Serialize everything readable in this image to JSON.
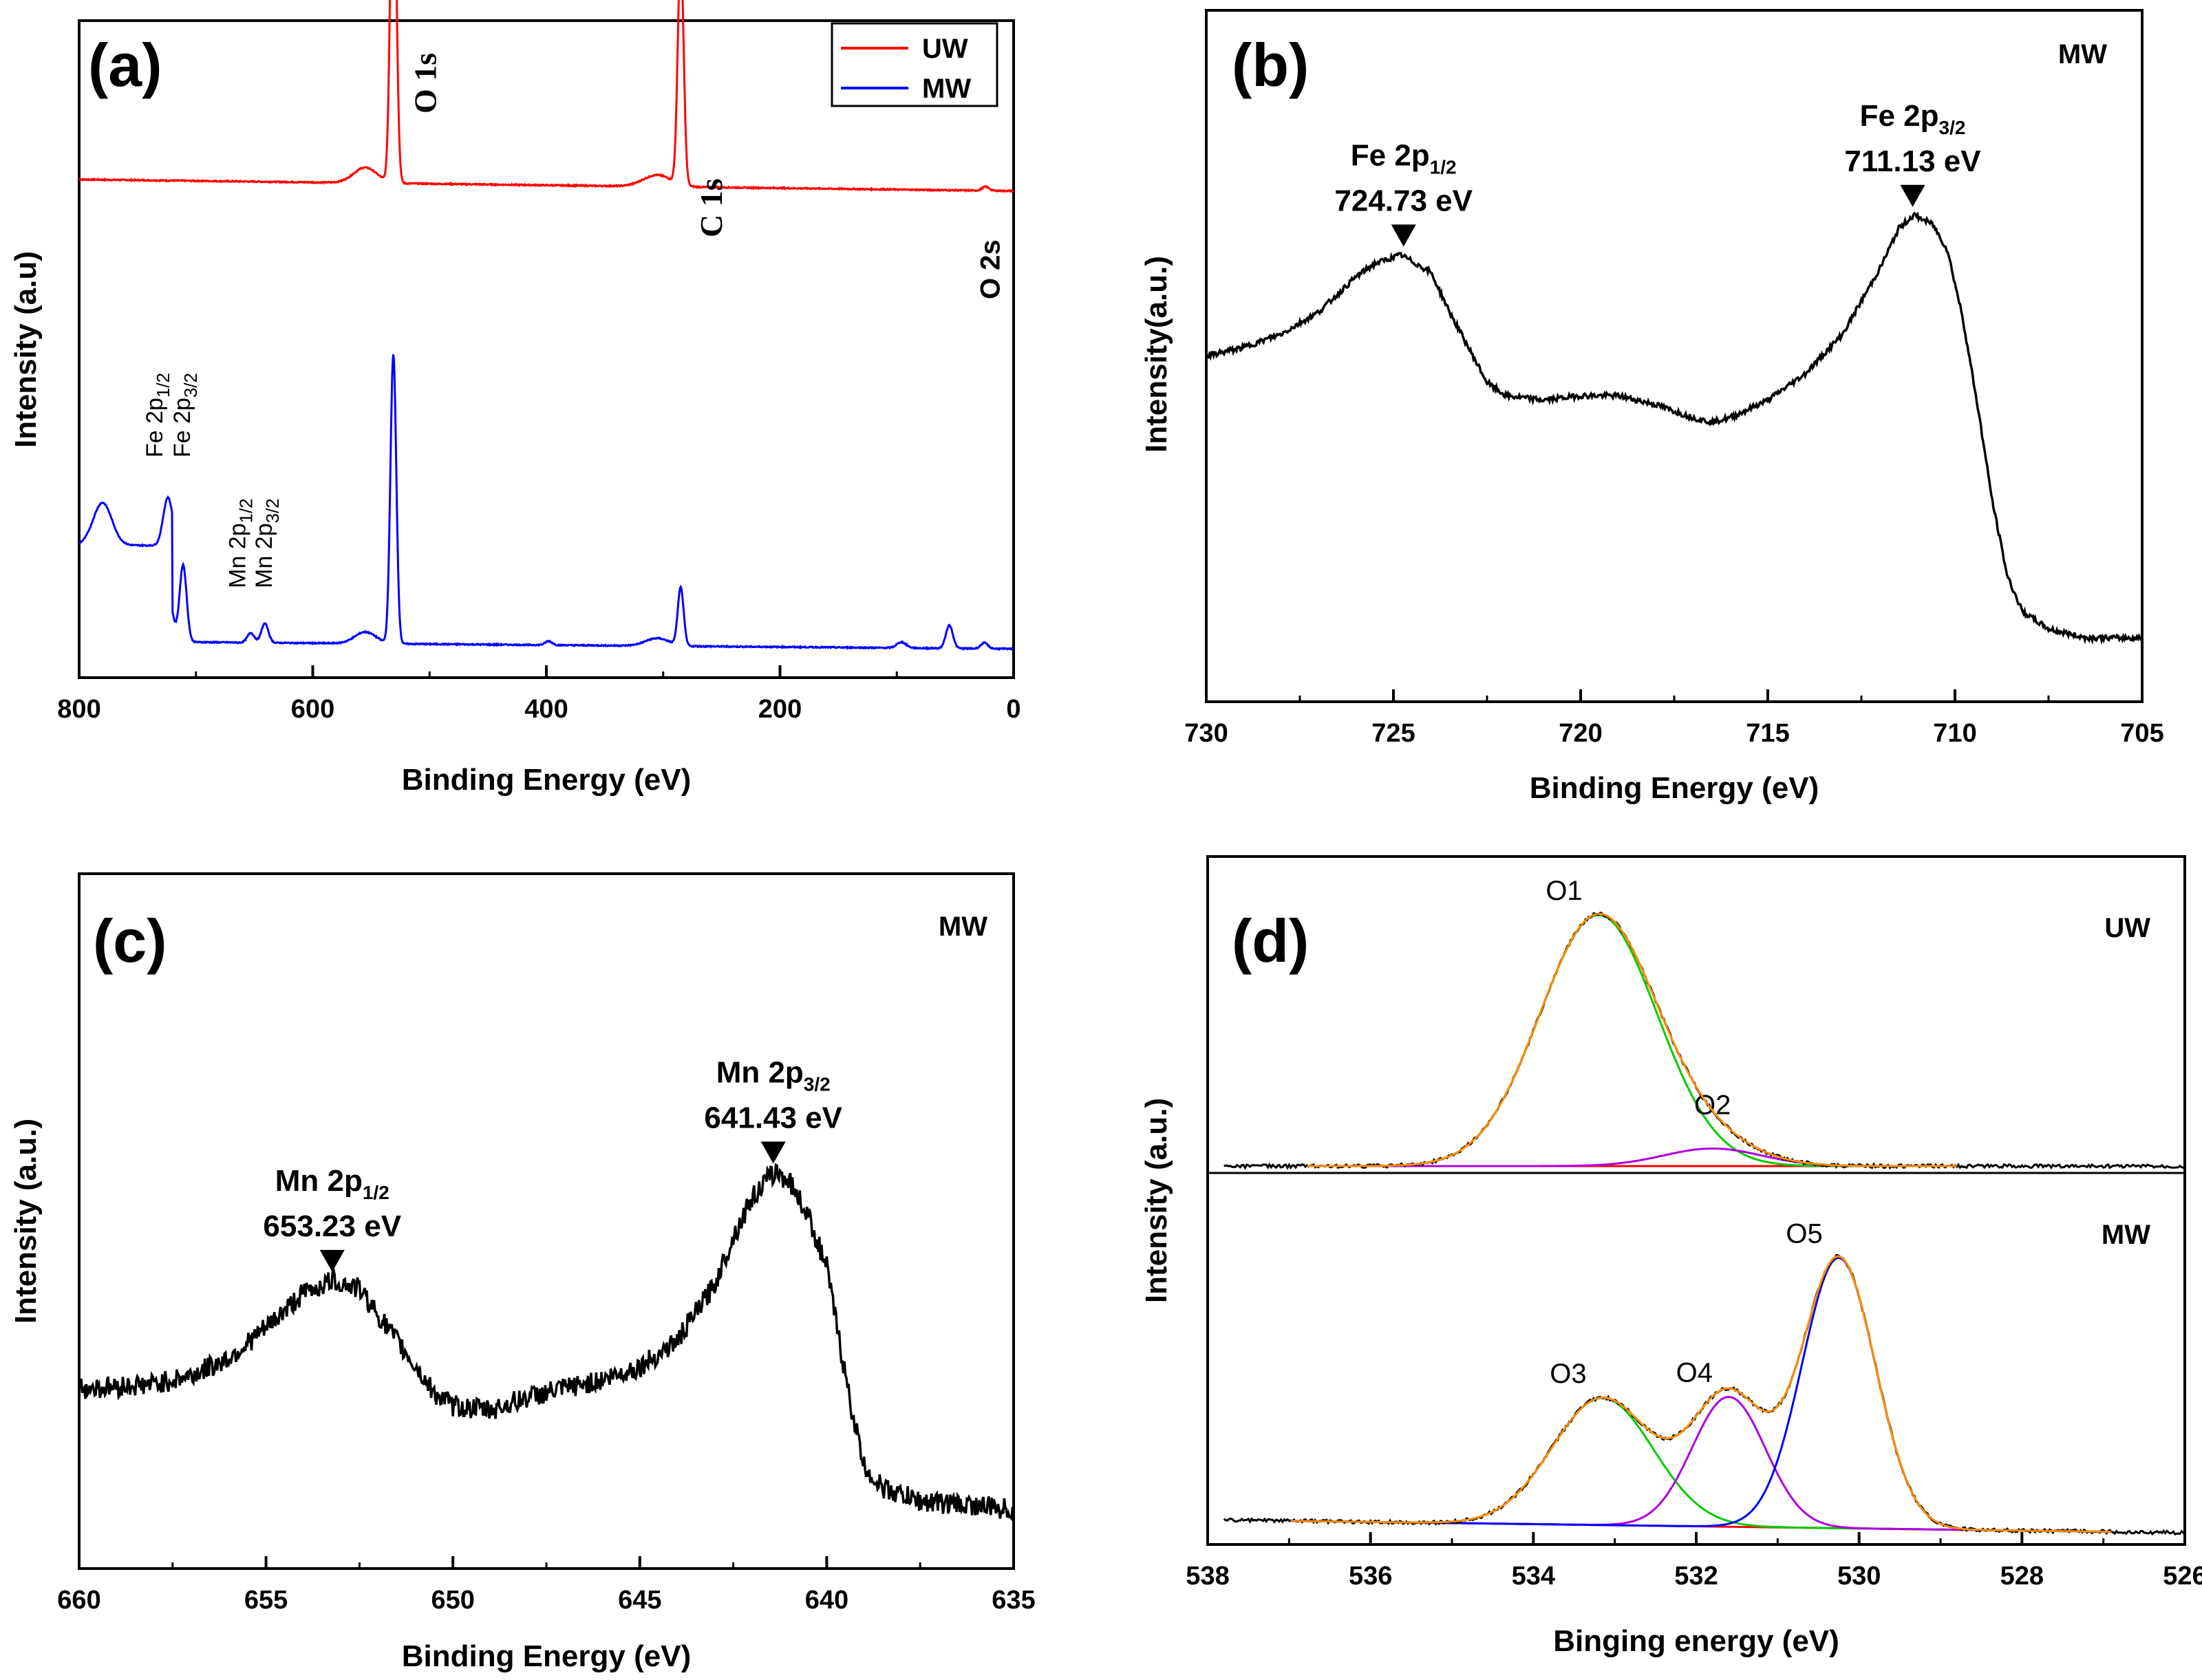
{
  "figure": {
    "panels": [
      "(a)",
      "(b)",
      "(c)",
      "(d)"
    ]
  },
  "colors": {
    "uw": "#ff0000",
    "mw": "#0000ff",
    "axis": "#000000",
    "fit_envelope": "#ff8c00",
    "green": "#00cc00",
    "violet": "#b000e0",
    "blue": "#0000ff",
    "baseline": "#ff0000"
  },
  "chart_data": [
    {
      "panel": "(a)",
      "type": "line",
      "xlabel": "Binding Energy (eV)",
      "ylabel": "Intensity (a.u)",
      "xlim": [
        800,
        0
      ],
      "xticks": [
        "800",
        "600",
        "400",
        "200",
        "0"
      ],
      "legend": {
        "position": "top-right",
        "entries": [
          "UW",
          "MW"
        ]
      },
      "series": [
        {
          "name": "UW",
          "baseline": 0.58,
          "slope": 0.06,
          "peaks": [
            [
              531,
              1.9,
              2.5
            ],
            [
              285,
              1.2,
              2.5
            ],
            [
              555,
              0.08,
              10
            ],
            [
              305,
              0.06,
              12
            ],
            [
              24,
              0.02,
              3
            ]
          ]
        },
        {
          "name": "MW",
          "baseline": 0.06,
          "slope": 0.04,
          "low_energy_step": [
            720,
            0.8
          ],
          "peaks": [
            [
              780,
              0.22,
              8
            ],
            [
              724,
              0.25,
              4
            ],
            [
              711,
              0.4,
              3
            ],
            [
              653,
              0.05,
              3
            ],
            [
              641,
              0.1,
              3
            ],
            [
              555,
              0.06,
              9
            ],
            [
              531,
              1.5,
              2.5
            ],
            [
              398,
              0.02,
              3
            ],
            [
              305,
              0.04,
              10
            ],
            [
              285,
              0.3,
              2.5
            ],
            [
              96,
              0.03,
              4
            ],
            [
              55,
              0.12,
              3
            ],
            [
              25,
              0.03,
              3
            ]
          ]
        }
      ],
      "annotations": [
        {
          "text": "O 1s",
          "x": 531
        },
        {
          "text": "C 1s",
          "x": 285
        },
        {
          "text": "O 2s",
          "x": 24
        }
      ],
      "mw_labels": [
        {
          "main": "Fe 2p",
          "sub": "1/2",
          "x": 724
        },
        {
          "main": "Fe 2p",
          "sub": "3/2",
          "x": 711
        },
        {
          "main": "Mn 2p",
          "sub": "1/2",
          "x": 653
        },
        {
          "main": "Mn 2p",
          "sub": "3/2",
          "x": 641
        }
      ]
    },
    {
      "panel": "(b)",
      "type": "line",
      "sample": "MW",
      "xlabel": "Binding Energy (eV)",
      "ylabel": "Intensity(a.u.)",
      "xlim": [
        730,
        705
      ],
      "xticks": [
        "730",
        "725",
        "720",
        "715",
        "710",
        "705"
      ],
      "series": [
        {
          "name": "Fe 2p",
          "points": [
            [
              730,
              0.66
            ],
            [
              729,
              0.68
            ],
            [
              728,
              0.71
            ],
            [
              727,
              0.76
            ],
            [
              726,
              0.84
            ],
            [
              725.5,
              0.87
            ],
            [
              724.8,
              0.89
            ],
            [
              724,
              0.85
            ],
            [
              723.5,
              0.76
            ],
            [
              723,
              0.68
            ],
            [
              722.5,
              0.6
            ],
            [
              722,
              0.57
            ],
            [
              721,
              0.56
            ],
            [
              720,
              0.57
            ],
            [
              719,
              0.57
            ],
            [
              718,
              0.55
            ],
            [
              717,
              0.52
            ],
            [
              716.5,
              0.51
            ],
            [
              716,
              0.52
            ],
            [
              715,
              0.56
            ],
            [
              714,
              0.62
            ],
            [
              713,
              0.71
            ],
            [
              712,
              0.86
            ],
            [
              711.5,
              0.95
            ],
            [
              711.1,
              0.98
            ],
            [
              710.6,
              0.96
            ],
            [
              710.2,
              0.9
            ],
            [
              709.8,
              0.75
            ],
            [
              709.4,
              0.55
            ],
            [
              709,
              0.33
            ],
            [
              708.6,
              0.16
            ],
            [
              708.2,
              0.08
            ],
            [
              707.5,
              0.04
            ],
            [
              706.5,
              0.02
            ],
            [
              705,
              0.02
            ]
          ]
        }
      ],
      "annotations": [
        {
          "main": "Fe 2p",
          "sub": "1/2",
          "value": "724.73 eV",
          "x": 724.73,
          "y": 0.89
        },
        {
          "main": "Fe 2p",
          "sub": "3/2",
          "value": "711.13 eV",
          "x": 711.13,
          "y": 0.98
        }
      ]
    },
    {
      "panel": "(c)",
      "type": "line",
      "sample": "MW",
      "xlabel": "Binding Energy (eV)",
      "ylabel": "Intensity (a.u.)",
      "xlim": [
        660,
        635
      ],
      "xticks": [
        "660",
        "655",
        "650",
        "645",
        "640",
        "635"
      ],
      "noise": 0.025,
      "series": [
        {
          "name": "Mn 2p",
          "points": [
            [
              660,
              0.32
            ],
            [
              658,
              0.33
            ],
            [
              657,
              0.35
            ],
            [
              656,
              0.39
            ],
            [
              655,
              0.46
            ],
            [
              654,
              0.54
            ],
            [
              653.2,
              0.57
            ],
            [
              652.5,
              0.55
            ],
            [
              652,
              0.49
            ],
            [
              651.5,
              0.43
            ],
            [
              651,
              0.37
            ],
            [
              650.5,
              0.31
            ],
            [
              650,
              0.28
            ],
            [
              649,
              0.27
            ],
            [
              648,
              0.3
            ],
            [
              647,
              0.32
            ],
            [
              646,
              0.34
            ],
            [
              645,
              0.37
            ],
            [
              644,
              0.43
            ],
            [
              643,
              0.56
            ],
            [
              642.5,
              0.67
            ],
            [
              642,
              0.76
            ],
            [
              641.4,
              0.82
            ],
            [
              641,
              0.8
            ],
            [
              640.5,
              0.72
            ],
            [
              640,
              0.6
            ],
            [
              639.7,
              0.45
            ],
            [
              639.4,
              0.3
            ],
            [
              639,
              0.14
            ],
            [
              638.5,
              0.09
            ],
            [
              637.5,
              0.06
            ],
            [
              636,
              0.05
            ],
            [
              635,
              0.04
            ]
          ]
        }
      ],
      "annotations": [
        {
          "main": "Mn 2p",
          "sub": "1/2",
          "value": "653.23 eV",
          "x": 653.23,
          "y": 0.57
        },
        {
          "main": "Mn 2p",
          "sub": "3/2",
          "value": "641.43 eV",
          "x": 641.43,
          "y": 0.82
        }
      ]
    },
    {
      "panel": "(d)",
      "type": "line",
      "xlabel": "Binging energy (eV)",
      "ylabel": "Intensity (a.u.)",
      "xlim": [
        538,
        526
      ],
      "xticks": [
        "538",
        "536",
        "534",
        "532",
        "530",
        "528",
        "526"
      ],
      "sections": [
        {
          "sample": "UW",
          "baseline": 0.0,
          "fit_range": [
            536.8,
            528.8
          ],
          "components": [
            {
              "name": "O1",
              "center": 533.2,
              "height": 1.0,
              "sigma": 0.72
            },
            {
              "name": "O2",
              "center": 531.8,
              "height": 0.07,
              "sigma": 0.6
            }
          ]
        },
        {
          "sample": "MW",
          "baseline": 0.0,
          "baseline_slope": 0.004,
          "fit_range": [
            537.0,
            526.9
          ],
          "components": [
            {
              "name": "O3",
              "center": 533.15,
              "height": 0.47,
              "sigma": 0.62
            },
            {
              "name": "O4",
              "center": 531.6,
              "height": 0.48,
              "sigma": 0.45
            },
            {
              "name": "O5",
              "center": 530.25,
              "height": 1.0,
              "sigma": 0.45
            }
          ]
        }
      ]
    }
  ]
}
